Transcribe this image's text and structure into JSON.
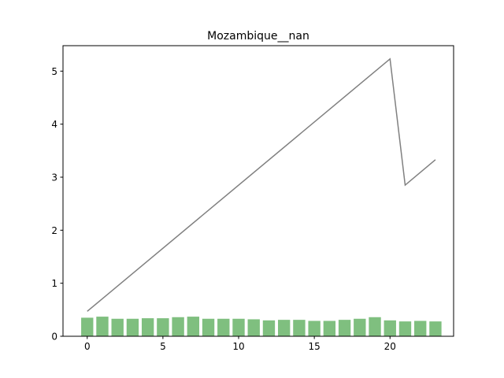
{
  "chart_data": {
    "type": "bar",
    "title": "Mozambique__nan",
    "xlabel": "",
    "ylabel": "",
    "xlim": [
      -1.6,
      24.2
    ],
    "ylim": [
      0,
      5.48
    ],
    "x_ticks": [
      0,
      5,
      10,
      15,
      20
    ],
    "y_ticks": [
      0,
      1,
      2,
      3,
      4,
      5
    ],
    "grid": false,
    "legend": "none",
    "bar_color": "#7fbf7f",
    "line_color": "#808080",
    "bars": {
      "x": [
        0,
        1,
        2,
        3,
        4,
        5,
        6,
        7,
        8,
        9,
        10,
        11,
        12,
        13,
        14,
        15,
        16,
        17,
        18,
        19,
        20,
        21,
        22,
        23
      ],
      "values": [
        0.35,
        0.37,
        0.33,
        0.33,
        0.34,
        0.34,
        0.36,
        0.37,
        0.33,
        0.33,
        0.33,
        0.32,
        0.3,
        0.31,
        0.31,
        0.29,
        0.29,
        0.31,
        0.33,
        0.36,
        0.3,
        0.28,
        0.29,
        0.28
      ]
    },
    "line": {
      "x": [
        0,
        20,
        21,
        23
      ],
      "values": [
        0.47,
        5.23,
        2.85,
        3.33
      ]
    }
  }
}
